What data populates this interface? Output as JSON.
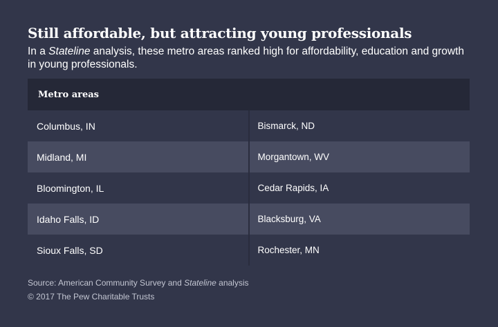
{
  "title": "Still affordable, but attracting young professionals",
  "subtitle": {
    "prefix": "In a ",
    "emphasis": "Stateline",
    "suffix": " analysis, these metro areas ranked high for affordability, education and growth in young professionals."
  },
  "chart_data": {
    "type": "table",
    "header": "Metro areas",
    "rows": [
      [
        "Columbus, IN",
        "Bismarck, ND"
      ],
      [
        "Midland, MI",
        "Morgantown, WV"
      ],
      [
        "Bloomington, IL",
        "Cedar Rapids, IA"
      ],
      [
        "Idaho Falls, ID",
        "Blacksburg, VA"
      ],
      [
        "Sioux Falls, SD",
        "Rochester, MN"
      ]
    ]
  },
  "footer": {
    "source_prefix": "Source: American Community Survey and ",
    "source_emphasis": "Stateline",
    "source_suffix": " analysis",
    "copyright": "© 2017 The Pew Charitable Trusts"
  },
  "colors": {
    "background": "#32364a",
    "header_bg": "#252837",
    "shaded_row": "#474b60"
  }
}
